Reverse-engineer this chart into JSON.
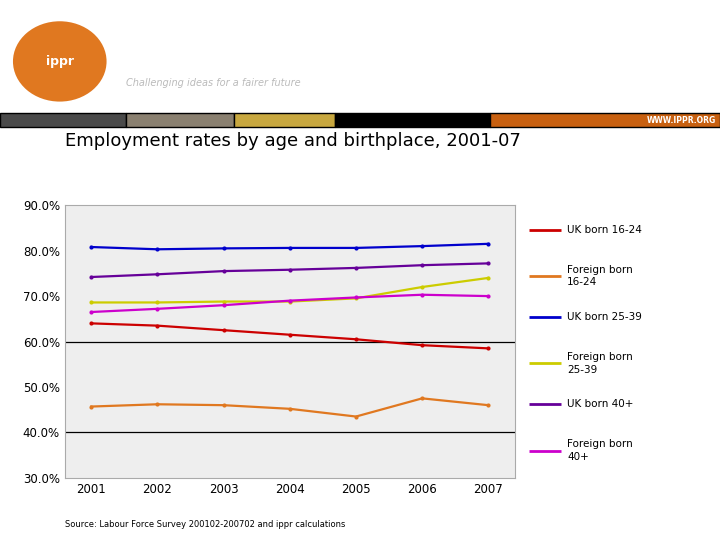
{
  "title": "Employment rates by age and birthplace, 2001-07",
  "years": [
    2001,
    2002,
    2003,
    2004,
    2005,
    2006,
    2007
  ],
  "series": {
    "UK born 16-24": {
      "color": "#cc0000",
      "values": [
        0.64,
        0.635,
        0.625,
        0.615,
        0.605,
        0.592,
        0.585
      ]
    },
    "Foreign born 16-24": {
      "color": "#e07820",
      "values": [
        0.457,
        0.462,
        0.46,
        0.452,
        0.435,
        0.475,
        0.46
      ]
    },
    "UK born 25-39": {
      "color": "#0000cc",
      "values": [
        0.808,
        0.803,
        0.805,
        0.806,
        0.806,
        0.81,
        0.815
      ]
    },
    "Foreign born 25-39": {
      "color": "#cccc00",
      "values": [
        0.686,
        0.686,
        0.688,
        0.688,
        0.695,
        0.72,
        0.74
      ]
    },
    "UK born 40+": {
      "color": "#660099",
      "values": [
        0.742,
        0.748,
        0.755,
        0.758,
        0.762,
        0.768,
        0.772
      ]
    },
    "Foreign born 40+": {
      "color": "#cc00cc",
      "values": [
        0.665,
        0.672,
        0.68,
        0.69,
        0.697,
        0.703,
        0.7
      ]
    }
  },
  "ylim": [
    0.3,
    0.9
  ],
  "yticks": [
    0.3,
    0.4,
    0.5,
    0.6,
    0.7,
    0.8,
    0.9
  ],
  "source_text": "Source: Labour Force Survey 200102-200702 and ippr calculations",
  "legend_entries": [
    {
      "label": "UK born 16-24",
      "color": "#cc0000"
    },
    {
      "label": "Foreign born\n16-24",
      "color": "#e07820"
    },
    {
      "label": "UK born 25-39",
      "color": "#0000cc"
    },
    {
      "label": "Foreign born\n25-39",
      "color": "#cccc00"
    },
    {
      "label": "UK born 40+",
      "color": "#660099"
    },
    {
      "label": "Foreign born\n40+",
      "color": "#cc00cc"
    }
  ]
}
